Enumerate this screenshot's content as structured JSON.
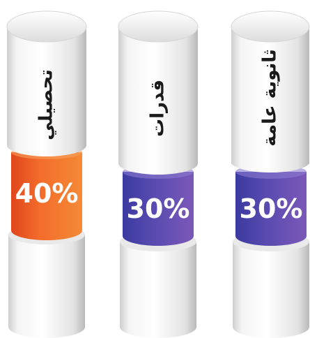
{
  "chart_data": {
    "type": "bar",
    "categories": [
      "تحصيلي",
      "قدرات",
      "ثانوية عامة"
    ],
    "values": [
      40,
      30,
      30
    ],
    "value_labels": [
      "40%",
      "30%",
      "30%"
    ],
    "unit": "%",
    "colors": {
      "tahsili": "#f26a2a",
      "qudurat": "#5a4bb0",
      "thanawiya": "#5a4bb0",
      "cylinder_body": "#e6e6e6",
      "label_text": "#1a1a1a",
      "value_text": "#ffffff"
    },
    "style": "stacked cylinders with colored band"
  }
}
